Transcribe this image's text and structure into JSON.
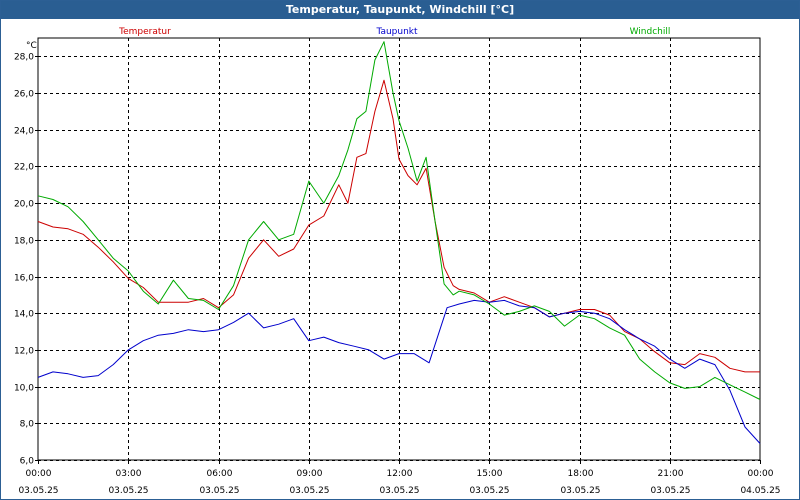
{
  "window": {
    "title": "Temperatur, Taupunkt, Windchill [°C]"
  },
  "chart_data": {
    "type": "line",
    "title": "Temperatur, Taupunkt, Windchill [°C]",
    "ylabel": "°C",
    "ylim": [
      6.0,
      29.0
    ],
    "xlim": [
      0,
      24
    ],
    "grid": true,
    "yticks": [
      6.0,
      8.0,
      10.0,
      12.0,
      14.0,
      16.0,
      18.0,
      20.0,
      22.0,
      24.0,
      26.0,
      28.0
    ],
    "ytick_labels": [
      "6,0",
      "8,0",
      "10,0",
      "12,0",
      "14,0",
      "16,0",
      "18,0",
      "20,0",
      "22,0",
      "24,0",
      "26,0",
      "28,0"
    ],
    "xticks": [
      {
        "x": 0,
        "time": "00:00",
        "date": "03.05.25"
      },
      {
        "x": 3,
        "time": "03:00",
        "date": "03.05.25"
      },
      {
        "x": 6,
        "time": "06:00",
        "date": "03.05.25"
      },
      {
        "x": 9,
        "time": "09:00",
        "date": "03.05.25"
      },
      {
        "x": 12,
        "time": "12:00",
        "date": "03.05.25"
      },
      {
        "x": 15,
        "time": "15:00",
        "date": "03.05.25"
      },
      {
        "x": 18,
        "time": "18:00",
        "date": "03.05.25"
      },
      {
        "x": 21,
        "time": "21:00",
        "date": "03.05.25"
      },
      {
        "x": 24,
        "time": "00:00",
        "date": "04.05.25"
      }
    ],
    "series": [
      {
        "name": "Temperatur",
        "color": "#cc0000",
        "x": [
          0,
          0.5,
          1,
          1.5,
          2,
          2.5,
          3,
          3.5,
          4,
          4.5,
          5,
          5.5,
          6,
          6.5,
          7,
          7.5,
          8,
          8.5,
          9,
          9.5,
          10,
          10.3,
          10.6,
          10.9,
          11.2,
          11.5,
          11.8,
          12,
          12.3,
          12.6,
          12.9,
          13.2,
          13.5,
          13.8,
          14,
          14.5,
          15,
          15.5,
          16,
          16.5,
          17,
          17.5,
          18,
          18.5,
          19,
          19.5,
          20,
          20.5,
          21,
          21.5,
          22,
          22.5,
          23,
          23.5,
          24
        ],
        "values": [
          19.0,
          18.7,
          18.6,
          18.3,
          17.6,
          16.8,
          15.9,
          15.4,
          14.6,
          14.6,
          14.6,
          14.8,
          14.3,
          15.0,
          17.0,
          18.0,
          17.1,
          17.5,
          18.8,
          19.3,
          21.0,
          20.0,
          22.5,
          22.7,
          25.0,
          26.7,
          24.6,
          22.4,
          21.5,
          21.0,
          21.9,
          19.0,
          16.5,
          15.5,
          15.3,
          15.1,
          14.6,
          14.9,
          14.6,
          14.3,
          13.8,
          14.0,
          14.2,
          14.2,
          13.9,
          13.0,
          12.6,
          11.9,
          11.3,
          11.2,
          11.8,
          11.6,
          11.0,
          10.8,
          10.8
        ]
      },
      {
        "name": "Taupunkt",
        "color": "#0000cc",
        "x": [
          0,
          0.5,
          1,
          1.5,
          2,
          2.5,
          3,
          3.5,
          4,
          4.5,
          5,
          5.5,
          6,
          6.5,
          7,
          7.5,
          8,
          8.5,
          9,
          9.5,
          10,
          10.5,
          11,
          11.5,
          12,
          12.5,
          13,
          13.3,
          13.6,
          14,
          14.5,
          15,
          15.5,
          16,
          16.5,
          17,
          17.5,
          18,
          18.5,
          19,
          19.5,
          20,
          20.5,
          21,
          21.5,
          22,
          22.5,
          23,
          23.5,
          24
        ],
        "values": [
          10.5,
          10.8,
          10.7,
          10.5,
          10.6,
          11.2,
          12.0,
          12.5,
          12.8,
          12.9,
          13.1,
          13.0,
          13.1,
          13.5,
          14.0,
          13.2,
          13.4,
          13.7,
          12.5,
          12.7,
          12.4,
          12.2,
          12.0,
          11.5,
          11.8,
          11.8,
          11.3,
          12.8,
          14.3,
          14.5,
          14.7,
          14.6,
          14.7,
          14.4,
          14.3,
          13.8,
          14.0,
          14.1,
          14.0,
          13.7,
          13.1,
          12.6,
          12.2,
          11.5,
          11.0,
          11.5,
          11.2,
          9.8,
          7.8,
          6.9
        ]
      },
      {
        "name": "Windchill",
        "color": "#00aa00",
        "x": [
          0,
          0.5,
          1,
          1.5,
          2,
          2.5,
          3,
          3.5,
          4,
          4.5,
          5,
          5.5,
          6,
          6.5,
          7,
          7.5,
          8,
          8.5,
          9,
          9.5,
          10,
          10.3,
          10.6,
          10.9,
          11.2,
          11.5,
          11.8,
          12,
          12.3,
          12.6,
          12.9,
          13.2,
          13.5,
          13.8,
          14,
          14.5,
          15,
          15.5,
          16,
          16.5,
          17,
          17.5,
          18,
          18.5,
          19,
          19.5,
          20,
          20.5,
          21,
          21.5,
          22,
          22.5,
          23,
          23.5,
          24
        ],
        "values": [
          20.4,
          20.2,
          19.8,
          19.0,
          18.0,
          17.0,
          16.3,
          15.2,
          14.5,
          15.8,
          14.8,
          14.7,
          14.2,
          15.5,
          18.0,
          19.0,
          18.0,
          18.3,
          21.2,
          20.0,
          21.5,
          22.9,
          24.6,
          25.0,
          27.8,
          28.8,
          26.0,
          24.5,
          23.0,
          21.2,
          22.5,
          19.0,
          15.6,
          15.0,
          15.2,
          15.0,
          14.5,
          13.9,
          14.1,
          14.4,
          14.1,
          13.3,
          13.9,
          13.7,
          13.2,
          12.8,
          11.5,
          10.8,
          10.2,
          9.9,
          10.0,
          10.5,
          10.1,
          9.7,
          9.3
        ]
      }
    ]
  }
}
